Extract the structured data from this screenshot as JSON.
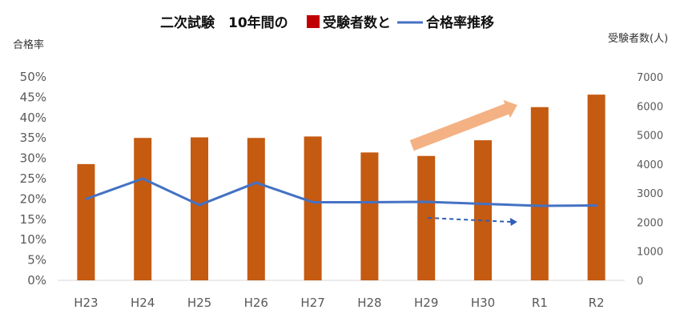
{
  "chart_data": {
    "type": "bar+line",
    "title_parts": {
      "prefix": "二次試験　10年間の",
      "bar_legend": "受験者数と",
      "line_legend": "合格率推移"
    },
    "categories": [
      "H23",
      "H24",
      "H25",
      "H26",
      "H27",
      "H28",
      "H29",
      "H30",
      "R1",
      "R2"
    ],
    "left_axis": {
      "label": "合格率",
      "ylim": [
        0,
        0.5
      ],
      "ticks": [
        "0%",
        "5%",
        "10%",
        "15%",
        "20%",
        "25%",
        "30%",
        "35%",
        "40%",
        "45%",
        "50%"
      ]
    },
    "right_axis": {
      "label": "受験者数(人)",
      "ylim": [
        0,
        7000
      ],
      "ticks": [
        "0",
        "1000",
        "2000",
        "3000",
        "4000",
        "5000",
        "6000",
        "7000"
      ]
    },
    "series": [
      {
        "type": "bar",
        "axis": "right",
        "values": [
          4000,
          4900,
          4920,
          4900,
          4950,
          4400,
          4280,
          4820,
          5960,
          6390
        ]
      },
      {
        "type": "line",
        "axis": "left",
        "values": [
          0.2,
          0.25,
          0.185,
          0.24,
          0.192,
          0.192,
          0.193,
          0.188,
          0.183,
          0.184
        ]
      }
    ],
    "annotations": [
      {
        "kind": "arrow",
        "style": "thick-up",
        "color": "#F4B183"
      },
      {
        "kind": "arrow",
        "style": "dashed-flat",
        "color": "#2E5EB8"
      }
    ],
    "colors": {
      "bar": "#C55A11",
      "line": "#4472C4",
      "legend_square": "#C00000",
      "up_arrow": "#F4B183",
      "dashed_arrow": "#2E5EB8"
    },
    "grid": false,
    "legend": "in-title"
  }
}
